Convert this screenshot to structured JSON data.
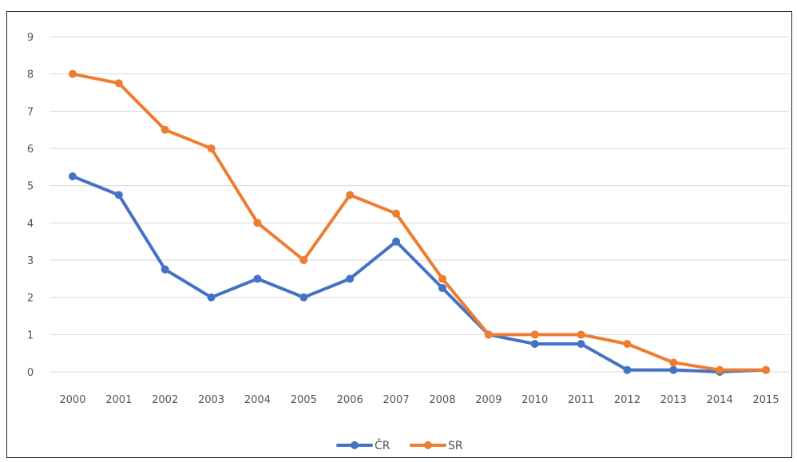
{
  "chart_data": {
    "type": "line",
    "title": "",
    "xlabel": "",
    "ylabel": "",
    "categories": [
      "2000",
      "2001",
      "2002",
      "2003",
      "2004",
      "2005",
      "2006",
      "2007",
      "2008",
      "2009",
      "2010",
      "2011",
      "2012",
      "2013",
      "2014",
      "2015"
    ],
    "ylim": [
      0,
      9
    ],
    "yticks": [
      0,
      1,
      2,
      3,
      4,
      5,
      6,
      7,
      8,
      9
    ],
    "grid": true,
    "legend_position": "bottom",
    "series": [
      {
        "name": "ČR",
        "color": "#4472C4",
        "values": [
          5.25,
          4.75,
          2.75,
          2.0,
          2.5,
          2.0,
          2.5,
          3.5,
          2.25,
          1.0,
          0.75,
          0.75,
          0.05,
          0.05,
          0.0,
          0.05
        ]
      },
      {
        "name": "SR",
        "color": "#ED7D31",
        "values": [
          8.0,
          7.75,
          6.5,
          6.0,
          4.0,
          3.0,
          4.75,
          4.25,
          2.5,
          1.0,
          1.0,
          1.0,
          0.75,
          0.25,
          0.05,
          0.05
        ]
      }
    ]
  }
}
